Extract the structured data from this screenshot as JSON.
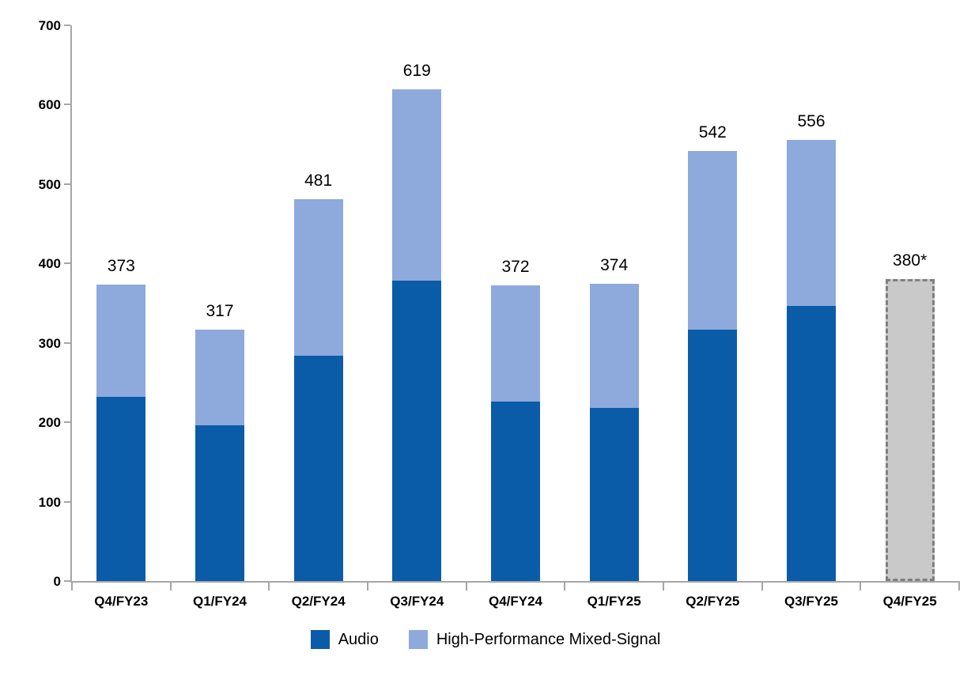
{
  "chart_data": {
    "type": "bar",
    "stacked": true,
    "title": "",
    "categories": [
      "Q4/FY23",
      "Q1/FY24",
      "Q2/FY24",
      "Q3/FY24",
      "Q4/FY24",
      "Q1/FY25",
      "Q2/FY25",
      "Q3/FY25",
      "Q4/FY25"
    ],
    "series": [
      {
        "name": "Audio",
        "color": "#0a5ca8",
        "values": [
          232,
          196,
          284,
          378,
          226,
          218,
          317,
          347,
          null
        ]
      },
      {
        "name": "High-Performance Mixed-Signal",
        "color": "#8ea9db",
        "values": [
          141,
          121,
          197,
          241,
          146,
          156,
          225,
          209,
          null
        ]
      }
    ],
    "totals_labels": [
      "373",
      "317",
      "481",
      "619",
      "372",
      "374",
      "542",
      "556",
      "380*"
    ],
    "forecast": {
      "index": 8,
      "category": "Q4/FY25",
      "value": 380,
      "label": "380*",
      "fill_color": "#c9c9c9",
      "border_color": "#7f7f7f",
      "border_style": "dashed"
    },
    "y_axis": {
      "min": 0,
      "max": 700,
      "step": 100,
      "tick_labels": [
        "0",
        "100",
        "200",
        "300",
        "400",
        "500",
        "600",
        "700"
      ]
    },
    "x_axis": {
      "boundary_ticks": 10
    },
    "legend": {
      "position": "bottom",
      "entries": [
        "Audio",
        "High-Performance Mixed-Signal"
      ]
    },
    "style": {
      "axis_color": "#a6a6a6",
      "text_color": "#000000",
      "background": "#ffffff",
      "gridlines": false
    }
  }
}
